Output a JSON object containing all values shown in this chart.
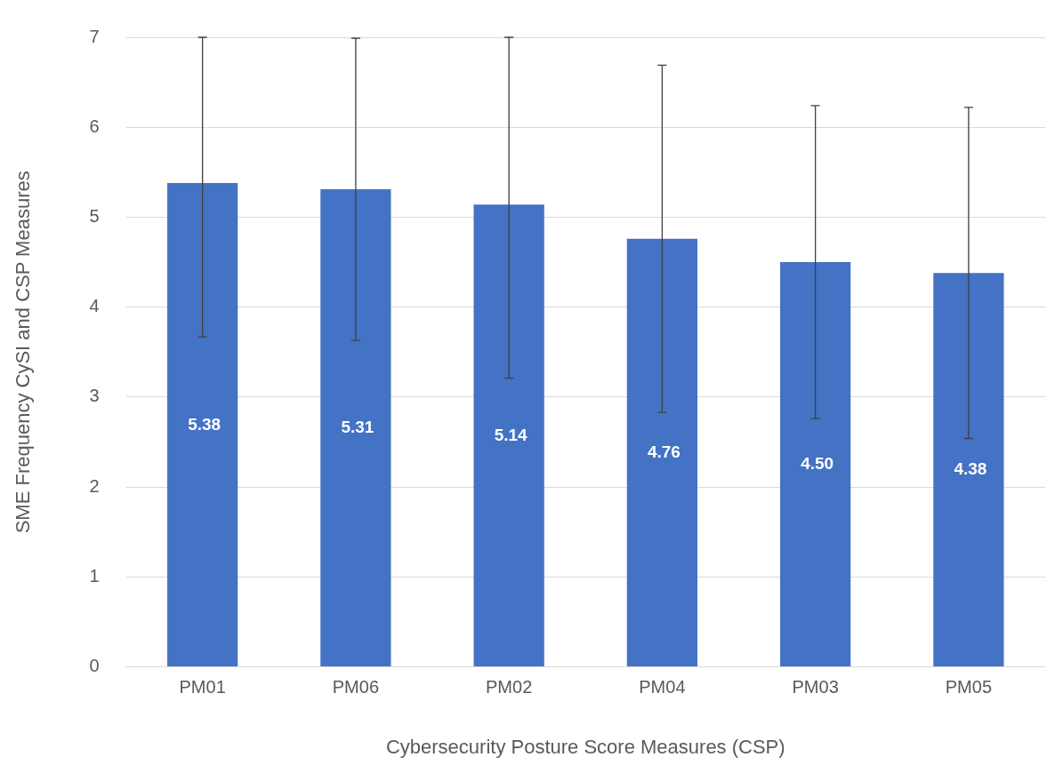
{
  "chart_data": {
    "type": "bar",
    "xlabel": "Cybersecurity Posture Score Measures (CSP)",
    "ylabel": "SME Frequency CySI and CSP Measures",
    "categories": [
      "PM01",
      "PM06",
      "PM02",
      "PM04",
      "PM03",
      "PM05"
    ],
    "values": [
      5.38,
      5.31,
      5.14,
      4.76,
      4.5,
      4.38
    ],
    "value_labels": [
      "5.38",
      "5.31",
      "5.14",
      "4.76",
      "4.50",
      "4.38"
    ],
    "errors": [
      [
        3.67,
        7
      ],
      [
        3.63,
        6.99
      ],
      [
        3.21,
        7
      ],
      [
        2.83,
        6.69
      ],
      [
        2.76,
        6.24
      ],
      [
        2.54,
        6.22
      ]
    ],
    "color": "#4472c4",
    "ylim": [
      0,
      7
    ],
    "yticks": [
      0,
      1,
      2,
      3,
      4,
      5,
      6,
      7
    ],
    "grid": "y",
    "legend": false
  }
}
